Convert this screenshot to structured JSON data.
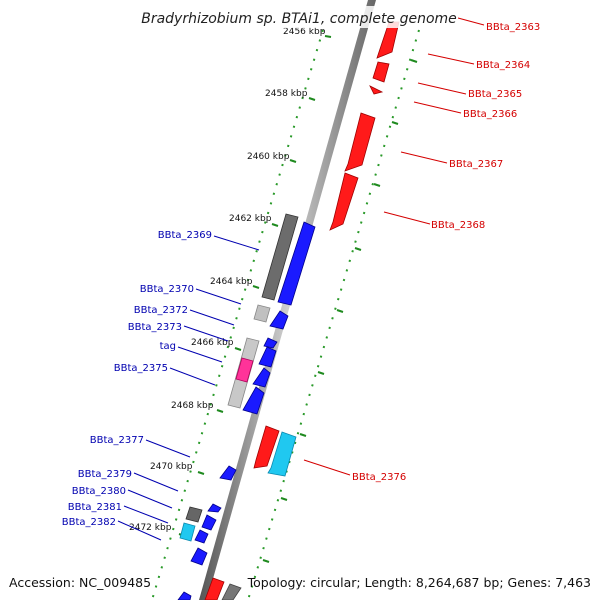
{
  "title": "Bradyrhizobium sp. BTAi1, complete genome",
  "accession": "Accession: NC_009485",
  "topology": "Topology: circular; Length: 8,264,687 bp; Genes: 7,463",
  "ticks": [
    {
      "label": "2456 kbp"
    },
    {
      "label": "2458 kbp"
    },
    {
      "label": "2460 kbp"
    },
    {
      "label": "2462 kbp"
    },
    {
      "label": "2464 kbp"
    },
    {
      "label": "2466 kbp"
    },
    {
      "label": "2468 kbp"
    },
    {
      "label": "2470 kbp"
    },
    {
      "label": "2472 kbp"
    }
  ],
  "genes_right": [
    {
      "name": "BBta_2363",
      "color": "#ff0000"
    },
    {
      "name": "BBta_2364",
      "color": "#ff0000"
    },
    {
      "name": "BBta_2365",
      "color": "#ff0000"
    },
    {
      "name": "BBta_2366",
      "color": "#ff0000"
    },
    {
      "name": "BBta_2367",
      "color": "#ff0000"
    },
    {
      "name": "BBta_2368",
      "color": "#ff0000"
    },
    {
      "name": "BBta_2376",
      "color": "#00ccff"
    }
  ],
  "genes_left": [
    {
      "name": "BBta_2369",
      "color": "#0000ff"
    },
    {
      "name": "BBta_2370",
      "color": "#0000ff"
    },
    {
      "name": "BBta_2372",
      "color": "#0000ff"
    },
    {
      "name": "BBta_2373",
      "color": "#0000ff"
    },
    {
      "name": "tag",
      "color": "#ff3399"
    },
    {
      "name": "BBta_2375",
      "color": "#0000ff"
    },
    {
      "name": "BBta_2377",
      "color": "#0000ff"
    },
    {
      "name": "BBta_2379",
      "color": "#0000ff"
    },
    {
      "name": "BBta_2380",
      "color": "#0000ff"
    },
    {
      "name": "BBta_2381",
      "color": "#0000ff"
    },
    {
      "name": "BBta_2382",
      "color": "#00ccff"
    }
  ]
}
